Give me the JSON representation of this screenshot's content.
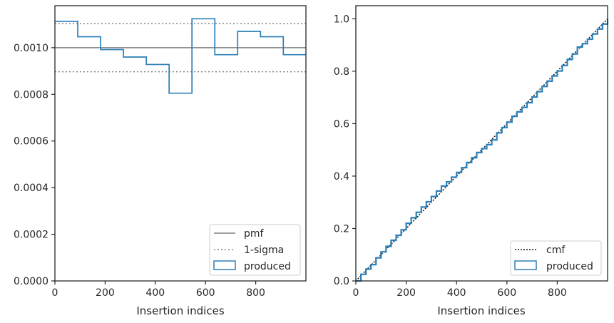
{
  "colors": {
    "produced": "#2c7fb8",
    "pmf": "#808080",
    "sigma": "#808080",
    "cmf": "#111111",
    "frame": "#262626"
  },
  "chart_data": [
    {
      "type": "line",
      "title": "",
      "xlabel": "Insertion indices",
      "ylabel": "",
      "xlim": [
        0,
        1000
      ],
      "ylim": [
        0,
        0.00118
      ],
      "xticks": [
        0,
        200,
        400,
        600,
        800
      ],
      "xtick_labels": [
        "0",
        "200",
        "400",
        "600",
        "800"
      ],
      "yticks": [
        0,
        0.0002,
        0.0004,
        0.0006,
        0.0008,
        0.001
      ],
      "ytick_labels": [
        "0.0000",
        "0.0002",
        "0.0004",
        "0.0006",
        "0.0008",
        "0.0010"
      ],
      "legend_placement": "lower-right",
      "series": [
        {
          "name": "pmf",
          "kind": "hline",
          "y": 0.001
        },
        {
          "name": "1-sigma",
          "kind": "hlines",
          "y": [
            0.000897,
            0.001103
          ]
        },
        {
          "name": "produced",
          "kind": "step",
          "bin_edges": [
            0,
            91,
            182,
            273,
            364,
            455,
            546,
            637,
            728,
            819,
            910,
            1000
          ],
          "values": [
            0.001113,
            0.001047,
            0.000992,
            0.00096,
            0.000928,
            0.000805,
            0.001124,
            0.00097,
            0.00107,
            0.001047,
            0.00097
          ]
        }
      ]
    },
    {
      "type": "line",
      "title": "",
      "xlabel": "Insertion indices",
      "ylabel": "",
      "xlim": [
        0,
        1000
      ],
      "ylim": [
        0,
        1.05
      ],
      "xticks": [
        0,
        200,
        400,
        600,
        800
      ],
      "xtick_labels": [
        "0",
        "200",
        "400",
        "600",
        "800"
      ],
      "yticks": [
        0,
        0.2,
        0.4,
        0.6,
        0.8,
        1.0
      ],
      "ytick_labels": [
        "0.0",
        "0.2",
        "0.4",
        "0.6",
        "0.8",
        "1.0"
      ],
      "legend_placement": "lower-right",
      "series": [
        {
          "name": "cmf",
          "kind": "line",
          "x": [
            0,
            1000
          ],
          "y": [
            0,
            1.0
          ]
        },
        {
          "name": "produced",
          "kind": "step",
          "x": [
            0,
            20,
            40,
            60,
            80,
            100,
            120,
            140,
            160,
            180,
            200,
            220,
            240,
            260,
            280,
            300,
            320,
            340,
            360,
            380,
            400,
            420,
            440,
            460,
            480,
            500,
            520,
            540,
            560,
            580,
            600,
            620,
            640,
            660,
            680,
            700,
            720,
            740,
            760,
            780,
            800,
            820,
            840,
            860,
            880,
            900,
            920,
            940,
            960,
            980,
            1000
          ],
          "y": [
            0.0,
            0.025,
            0.045,
            0.062,
            0.088,
            0.111,
            0.132,
            0.155,
            0.174,
            0.195,
            0.22,
            0.241,
            0.262,
            0.282,
            0.302,
            0.322,
            0.343,
            0.362,
            0.378,
            0.396,
            0.414,
            0.432,
            0.452,
            0.47,
            0.49,
            0.505,
            0.52,
            0.538,
            0.565,
            0.585,
            0.606,
            0.628,
            0.645,
            0.662,
            0.68,
            0.702,
            0.722,
            0.742,
            0.762,
            0.782,
            0.801,
            0.822,
            0.845,
            0.866,
            0.892,
            0.905,
            0.922,
            0.942,
            0.961,
            0.98,
            1.0
          ]
        }
      ]
    }
  ]
}
